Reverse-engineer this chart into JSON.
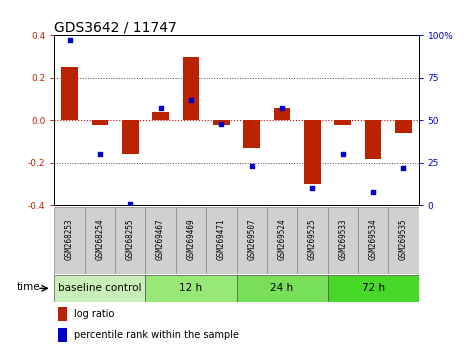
{
  "title": "GDS3642 / 11747",
  "samples": [
    "GSM268253",
    "GSM268254",
    "GSM268255",
    "GSM269467",
    "GSM269469",
    "GSM269471",
    "GSM269507",
    "GSM269524",
    "GSM269525",
    "GSM269533",
    "GSM269534",
    "GSM269535"
  ],
  "log_ratio": [
    0.25,
    -0.02,
    -0.16,
    0.04,
    0.3,
    -0.02,
    -0.13,
    0.06,
    -0.3,
    -0.02,
    -0.18,
    -0.06
  ],
  "percentile_rank": [
    97,
    30,
    1,
    57,
    62,
    48,
    23,
    57,
    10,
    30,
    8,
    22
  ],
  "groups": [
    {
      "label": "baseline control",
      "start": 0,
      "end": 3,
      "color": "#c8f0b8"
    },
    {
      "label": "12 h",
      "start": 3,
      "end": 6,
      "color": "#98e878"
    },
    {
      "label": "24 h",
      "start": 6,
      "end": 9,
      "color": "#78e058"
    },
    {
      "label": "72 h",
      "start": 9,
      "end": 12,
      "color": "#48d828"
    }
  ],
  "bar_color": "#bb2200",
  "scatter_color": "#0000cc",
  "ylim_left": [
    -0.4,
    0.4
  ],
  "ylim_right": [
    0,
    100
  ],
  "yticks_left": [
    -0.4,
    -0.2,
    0.0,
    0.2,
    0.4
  ],
  "yticks_right": [
    0,
    25,
    50,
    75,
    100
  ],
  "zero_line_color": "#cc0000",
  "dotted_line_color": "#444444",
  "background_color": "#ffffff",
  "title_fontsize": 10,
  "tick_fontsize": 6.5,
  "sample_fontsize": 5.5,
  "group_label_fontsize": 7.5,
  "legend_fontsize": 7,
  "time_label": "time",
  "bar_width": 0.55,
  "sample_box_color": "#d0d0d0",
  "sample_box_edge": "#888888"
}
